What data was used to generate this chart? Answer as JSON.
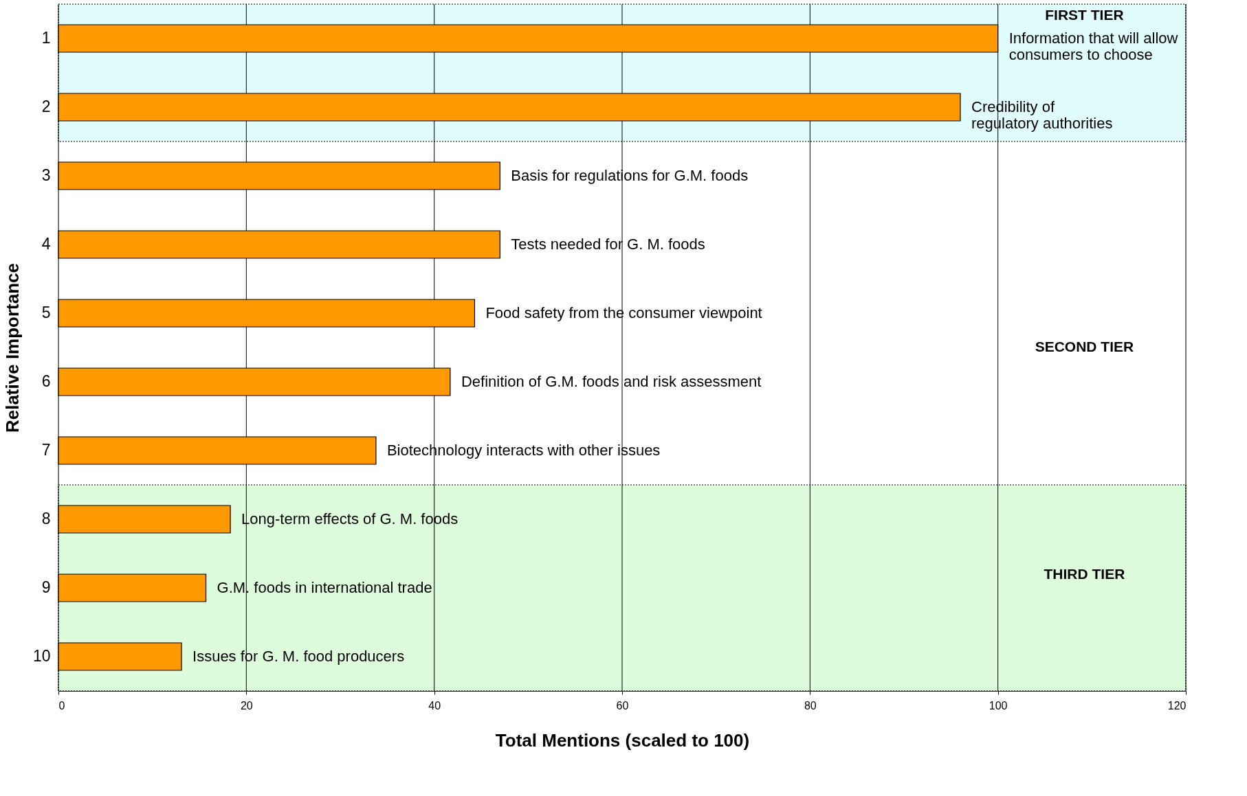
{
  "chart_data": {
    "type": "bar",
    "orientation": "horizontal",
    "categories": [
      "1",
      "2",
      "3",
      "4",
      "5",
      "6",
      "7",
      "8",
      "9",
      "10"
    ],
    "values": [
      100,
      96,
      47,
      47,
      44.3,
      41.7,
      33.8,
      18.3,
      15.7,
      13.1
    ],
    "color": "#ff9900",
    "xlabel": "Total Mentions (scaled to 100)",
    "ylabel": "Relative Importance",
    "xlim": [
      0,
      120
    ],
    "xticks": [
      0,
      20,
      40,
      60,
      80,
      100,
      120
    ],
    "grid": "x",
    "bands": [
      {
        "axis": "y",
        "from": "1",
        "to": "2",
        "label": "FIRST TIER",
        "color": "#e0fcfc"
      },
      {
        "axis": "y",
        "from": "8",
        "to": "10",
        "label": "THIRD TIER",
        "color": "#ddfcdc"
      }
    ],
    "annotations": [
      {
        "text": "Information that will allow\nconsumers to choose",
        "x": 100,
        "y": "1"
      },
      {
        "text": "Credibility of\nregulatory authorities",
        "x": 96,
        "y": "2"
      },
      {
        "text": "Basis for regulations for G.M. foods",
        "x": 47,
        "y": "3"
      },
      {
        "text": "Tests needed for G. M. foods",
        "x": 47,
        "y": "4"
      },
      {
        "text": "Food safety from the consumer viewpoint",
        "x": 44.3,
        "y": "5"
      },
      {
        "text": "Definition of G.M. foods and risk assessment",
        "x": 41.7,
        "y": "6"
      },
      {
        "text": "Biotechnology interacts with other issues",
        "x": 33.8,
        "y": "7"
      },
      {
        "text": "Long-term effects of G. M. foods",
        "x": 18.3,
        "y": "8"
      },
      {
        "text": "G.M. foods in international trade",
        "x": 15.7,
        "y": "9"
      },
      {
        "text": "Issues for G. M. food producers",
        "x": 13.1,
        "y": "10"
      },
      "SECOND TIER"
    ]
  }
}
